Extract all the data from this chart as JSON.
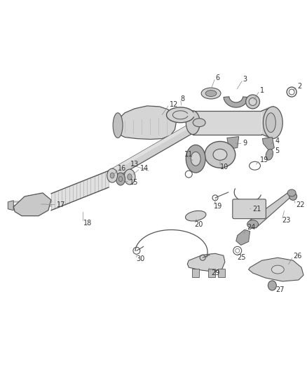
{
  "bg_color": "#ffffff",
  "fig_width": 4.38,
  "fig_height": 5.33,
  "dpi": 100,
  "lc": "#555555",
  "lc2": "#888888",
  "pf": "#d2d2d2",
  "pfd": "#aaaaaa",
  "pfl": "#e8e8e8",
  "fs": 7.0
}
